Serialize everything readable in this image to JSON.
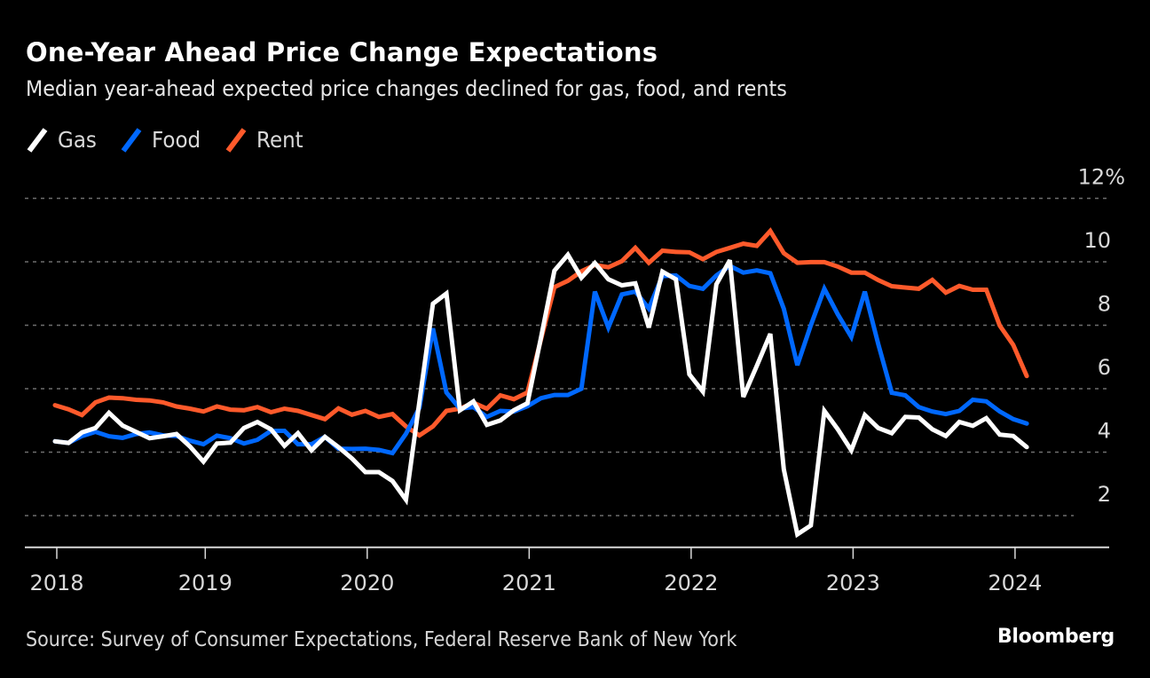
{
  "header": {
    "title": "One-Year Ahead Price Change Expectations",
    "subtitle": "Median year-ahead expected price changes declined for gas, food, and rents"
  },
  "footer": {
    "source": "Source: Survey of Consumer Expectations, Federal Reserve Bank of New York",
    "brand": "Bloomberg"
  },
  "colors": {
    "background": "#000000",
    "gas": "#ffffff",
    "food": "#0068ff",
    "rent": "#ff5a2b",
    "grid": "#6e6e6e",
    "axis": "#d9d9d9"
  },
  "chart_data": {
    "type": "line",
    "title": "One-Year Ahead Price Change Expectations",
    "subtitle": "Median year-ahead expected price changes declined for gas, food, and rents",
    "xlabel": "",
    "ylabel": "",
    "y_unit": "%",
    "ylim": [
      1,
      12
    ],
    "yticks": [
      2,
      4,
      6,
      8,
      10,
      12
    ],
    "ytick_labels": [
      "2",
      "4",
      "6",
      "8",
      "10",
      "12%"
    ],
    "grid": true,
    "legend_position": "top-left",
    "x_unit": "month index (monthly observations, 2018 to early 2024)",
    "xlim": [
      0,
      72
    ],
    "xticks": [
      {
        "label": "2018",
        "x": 0
      },
      {
        "label": "2019",
        "x": 11
      },
      {
        "label": "2020",
        "x": 23
      },
      {
        "label": "2021",
        "x": 35
      },
      {
        "label": "2022",
        "x": 47
      },
      {
        "label": "2023",
        "x": 59
      },
      {
        "label": "2024",
        "x": 71
      }
    ],
    "series": [
      {
        "name": "Gas",
        "color": "#ffffff",
        "values": [
          4.34,
          4.29,
          4.62,
          4.76,
          5.24,
          4.84,
          4.64,
          4.44,
          4.5,
          4.57,
          4.18,
          3.7,
          4.27,
          4.3,
          4.76,
          4.95,
          4.72,
          4.2,
          4.6,
          4.06,
          4.48,
          4.16,
          3.8,
          3.37,
          3.37,
          3.09,
          2.5,
          5.6,
          8.68,
          9.0,
          5.32,
          5.6,
          4.86,
          5.0,
          5.32,
          5.54,
          7.6,
          9.72,
          10.22,
          9.5,
          9.96,
          9.45,
          9.26,
          9.32,
          7.93,
          9.69,
          9.45,
          6.45,
          5.91,
          9.29,
          10.05,
          5.74,
          6.72,
          7.73,
          3.46,
          1.41,
          1.69,
          5.3,
          4.72,
          4.06,
          5.17,
          4.76,
          4.6,
          5.11,
          5.09,
          4.72,
          4.51,
          4.95,
          4.83,
          5.07,
          4.55,
          4.51,
          4.16
        ]
      },
      {
        "name": "Food",
        "color": "#0068ff",
        "values": [
          4.34,
          4.29,
          4.51,
          4.64,
          4.5,
          4.45,
          4.57,
          4.62,
          4.53,
          4.51,
          4.36,
          4.25,
          4.52,
          4.44,
          4.27,
          4.39,
          4.67,
          4.67,
          4.25,
          4.25,
          4.48,
          4.11,
          4.1,
          4.11,
          4.07,
          3.97,
          4.58,
          5.4,
          7.9,
          5.88,
          5.37,
          5.42,
          5.11,
          5.3,
          5.28,
          5.45,
          5.7,
          5.8,
          5.8,
          6.0,
          9.06,
          7.93,
          8.97,
          9.06,
          8.53,
          9.55,
          9.57,
          9.24,
          9.15,
          9.57,
          9.87,
          9.66,
          9.73,
          9.64,
          8.52,
          6.74,
          8.0,
          9.15,
          8.34,
          7.63,
          9.06,
          7.4,
          5.87,
          5.79,
          5.42,
          5.28,
          5.2,
          5.3,
          5.65,
          5.6,
          5.28,
          5.04,
          4.9
        ]
      },
      {
        "name": "Rent",
        "color": "#ff5a2b",
        "values": [
          5.48,
          5.35,
          5.17,
          5.57,
          5.72,
          5.7,
          5.65,
          5.63,
          5.57,
          5.44,
          5.37,
          5.28,
          5.44,
          5.34,
          5.32,
          5.42,
          5.26,
          5.37,
          5.3,
          5.17,
          5.04,
          5.38,
          5.18,
          5.3,
          5.11,
          5.2,
          4.81,
          4.53,
          4.81,
          5.3,
          5.37,
          5.56,
          5.37,
          5.79,
          5.67,
          5.88,
          7.55,
          9.2,
          9.4,
          9.7,
          9.9,
          9.83,
          10.02,
          10.44,
          9.97,
          10.35,
          10.31,
          10.3,
          10.08,
          10.31,
          10.44,
          10.57,
          10.5,
          10.97,
          10.27,
          9.97,
          9.99,
          9.99,
          9.85,
          9.66,
          9.66,
          9.42,
          9.23,
          9.19,
          9.15,
          9.43,
          9.03,
          9.24,
          9.12,
          9.12,
          7.99,
          7.38,
          6.4
        ]
      }
    ]
  }
}
